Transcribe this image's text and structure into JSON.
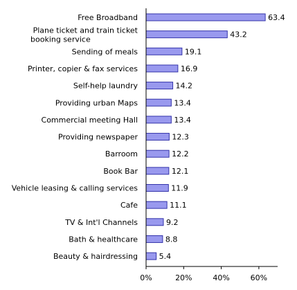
{
  "chart_data": {
    "type": "bar",
    "orientation": "horizontal",
    "categories": [
      "Free Broadband",
      "Plane ticket and train ticket\nbooking service",
      "Sending of meals",
      "Printer, copier & fax services",
      "Self-help laundry",
      "Providing urban Maps",
      "Commercial meeting Hall",
      "Providing newspaper",
      "Barroom",
      "Book Bar",
      "Vehicle leasing & calling services",
      "Cafe",
      "TV & Int'l Channels",
      "Bath & healthcare",
      "Beauty & hairdressing"
    ],
    "values": [
      63.4,
      43.2,
      19.1,
      16.9,
      14.2,
      13.4,
      13.4,
      12.3,
      12.2,
      12.1,
      11.9,
      11.1,
      9.2,
      8.8,
      5.4
    ],
    "value_labels": [
      "63.4",
      "43.2",
      "19.1",
      "16.9",
      "14.2",
      "13.4",
      "13.4",
      "12.3",
      "12.2",
      "12.1",
      "11.9",
      "11.1",
      "9.2",
      "8.8",
      "5.4"
    ],
    "xlim": [
      0,
      70
    ],
    "xticks": [
      0,
      20,
      40,
      60
    ],
    "xtick_labels": [
      "0%",
      "20%",
      "40%",
      "60%"
    ],
    "title": "",
    "xlabel": "",
    "ylabel": "",
    "grid": false,
    "legend": "none",
    "colors": {
      "bar_fill": "#9999ee",
      "bar_stroke": "#3333aa",
      "axis": "#000000"
    }
  }
}
